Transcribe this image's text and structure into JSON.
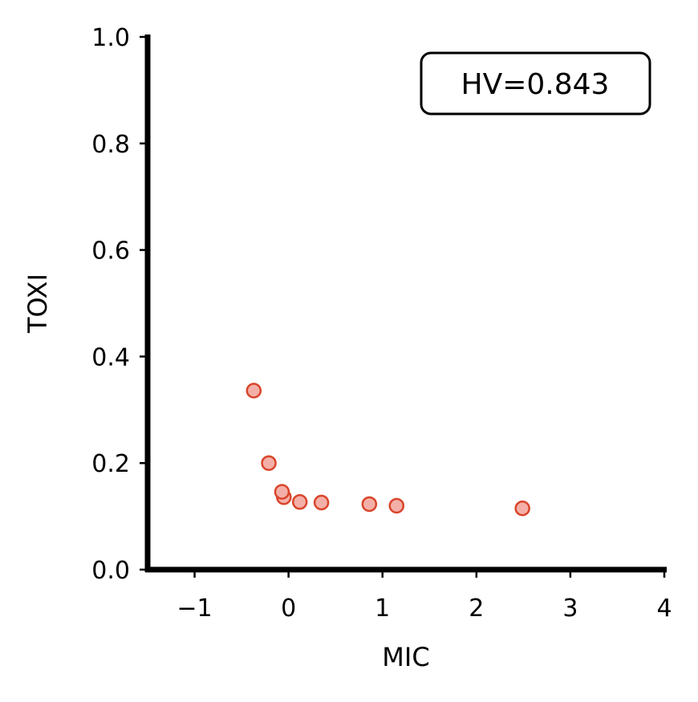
{
  "chart_data": {
    "type": "scatter",
    "xlabel": "MIC",
    "ylabel": "TOXI",
    "xlim": [
      -1.5,
      4.0
    ],
    "ylim": [
      0.0,
      1.0
    ],
    "xticks": [
      -1,
      0,
      1,
      2,
      3,
      4
    ],
    "xtick_labels": [
      "−1",
      "0",
      "1",
      "2",
      "3",
      "4"
    ],
    "yticks": [
      0.0,
      0.2,
      0.4,
      0.6,
      0.8,
      1.0
    ],
    "ytick_labels": [
      "0.0",
      "0.2",
      "0.4",
      "0.6",
      "0.8",
      "1.0"
    ],
    "grid": false,
    "series": [
      {
        "points": [
          {
            "x": -0.37,
            "y": 0.336
          },
          {
            "x": -0.21,
            "y": 0.2
          },
          {
            "x": -0.05,
            "y": 0.136
          },
          {
            "x": -0.07,
            "y": 0.146
          },
          {
            "x": 0.12,
            "y": 0.127
          },
          {
            "x": 0.35,
            "y": 0.126
          },
          {
            "x": 0.86,
            "y": 0.123
          },
          {
            "x": 1.15,
            "y": 0.12
          },
          {
            "x": 2.49,
            "y": 0.115
          }
        ],
        "marker_fill": "#f4b0a8",
        "marker_edge": "#d9452b"
      }
    ],
    "annotation": {
      "text": "HV=0.843",
      "position": "top-right"
    },
    "colors": {
      "axis": "#000000",
      "background": "#ffffff"
    }
  }
}
